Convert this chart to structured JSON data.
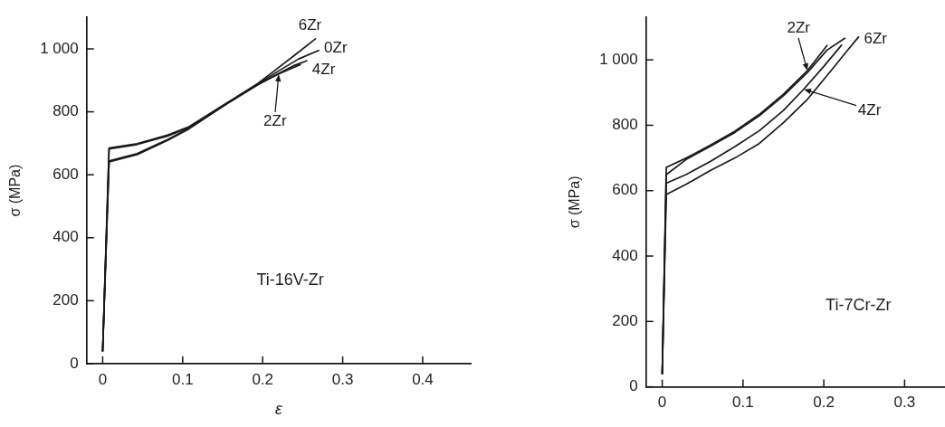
{
  "chart_data": [
    {
      "type": "line",
      "title": "Ti-16V-Zr",
      "xlabel": "ε",
      "ylabel": "σ (MPa)",
      "xlim": [
        -0.02,
        0.46
      ],
      "ylim": [
        0,
        1100
      ],
      "xticks": [
        0,
        0.1,
        0.2,
        0.3,
        0.4
      ],
      "yticks": [
        0,
        200,
        400,
        600,
        800,
        {
          "value": 1000,
          "label": "1 000"
        }
      ],
      "marker": "none",
      "series": [
        {
          "name": "0Zr",
          "color": "#1a1a1a",
          "x": [
            0,
            0.008,
            0.043,
            0.081,
            0.108,
            0.157,
            0.194,
            0.22,
            0.245,
            0.27
          ],
          "values": [
            40,
            644,
            667,
            712,
            748,
            830,
            888,
            930,
            968,
            995
          ]
        },
        {
          "name": "2Zr",
          "color": "#1a1a1a",
          "x": [
            0,
            0.008,
            0.043,
            0.081,
            0.108,
            0.157,
            0.194,
            0.22,
            0.247
          ],
          "values": [
            40,
            641,
            664,
            709,
            746,
            828,
            887,
            920,
            950
          ]
        },
        {
          "name": "4Zr",
          "color": "#1a1a1a",
          "x": [
            0,
            0.008,
            0.043,
            0.081,
            0.108,
            0.157,
            0.194,
            0.22,
            0.24,
            0.255
          ],
          "values": [
            40,
            682,
            696,
            723,
            750,
            829,
            886,
            922,
            948,
            962
          ]
        },
        {
          "name": "6Zr",
          "color": "#1a1a1a",
          "x": [
            0,
            0.008,
            0.043,
            0.081,
            0.108,
            0.157,
            0.194,
            0.213,
            0.24,
            0.266
          ],
          "values": [
            40,
            685,
            699,
            726,
            753,
            831,
            890,
            927,
            980,
            1032
          ]
        }
      ]
    },
    {
      "type": "line",
      "title": "Ti-7Cr-Zr",
      "ylabel": "σ (MPa)",
      "xlim": [
        -0.02,
        0.35
      ],
      "ylim": [
        0,
        1130
      ],
      "xticks": [
        0,
        0.1,
        0.2,
        0.3
      ],
      "yticks": [
        0,
        200,
        400,
        600,
        800,
        {
          "value": 1000,
          "label": "1 000"
        }
      ],
      "marker": "none",
      "series": [
        {
          "color": "#1a1a1a",
          "x": [
            0,
            0.005,
            0.03,
            0.06,
            0.09,
            0.12,
            0.15,
            0.18,
            0.204,
            0.226
          ],
          "values": [
            40,
            649,
            696,
            736,
            778,
            829,
            890,
            962,
            1030,
            1066
          ]
        },
        {
          "name": "2Zr",
          "color": "#1a1a1a",
          "x": [
            0,
            0.005,
            0.03,
            0.06,
            0.09,
            0.12,
            0.15,
            0.18,
            0.204
          ],
          "values": [
            40,
            671,
            700,
            740,
            782,
            833,
            895,
            968,
            1044
          ]
        },
        {
          "name": "4Zr",
          "color": "#1a1a1a",
          "x": [
            0,
            0.005,
            0.03,
            0.06,
            0.09,
            0.12,
            0.15,
            0.175,
            0.2,
            0.222
          ],
          "values": [
            40,
            623,
            650,
            690,
            735,
            783,
            845,
            910,
            980,
            1045
          ]
        },
        {
          "name": "6Zr",
          "color": "#1a1a1a",
          "x": [
            0,
            0.005,
            0.03,
            0.06,
            0.09,
            0.12,
            0.15,
            0.18,
            0.21,
            0.229,
            0.243
          ],
          "values": [
            40,
            588,
            620,
            662,
            700,
            744,
            808,
            880,
            970,
            1028,
            1070
          ]
        }
      ]
    }
  ]
}
